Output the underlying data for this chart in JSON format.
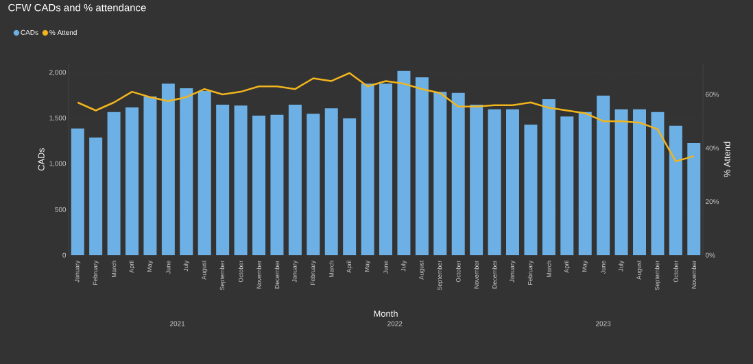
{
  "chart_data": {
    "type": "bar",
    "title": "CFW CADs and % attendance",
    "xlabel": "Month",
    "ylabel": "CADs",
    "y2label": "% Attend",
    "categories": [
      "January",
      "February",
      "March",
      "April",
      "May",
      "June",
      "July",
      "August",
      "September",
      "October",
      "November",
      "December",
      "January",
      "February",
      "March",
      "April",
      "May",
      "June",
      "July",
      "August",
      "September",
      "October",
      "November",
      "December",
      "January",
      "February",
      "March",
      "April",
      "May",
      "June",
      "July",
      "August",
      "September",
      "October",
      "November"
    ],
    "annotations": [
      "2021",
      "2022",
      "2023"
    ],
    "series": [
      {
        "name": "CADs",
        "type": "bar",
        "color": "#6cb0e5",
        "values": [
          1390,
          1290,
          1570,
          1620,
          1740,
          1880,
          1830,
          1800,
          1650,
          1640,
          1530,
          1540,
          1650,
          1550,
          1610,
          1500,
          1880,
          1880,
          2020,
          1950,
          1790,
          1780,
          1650,
          1600,
          1600,
          1430,
          1710,
          1520,
          1570,
          1750,
          1600,
          1600,
          1570,
          1420,
          1230
        ]
      },
      {
        "name": "% Attend",
        "type": "line",
        "axis": "y2",
        "color": "#f2b51c",
        "values": [
          57,
          54,
          57,
          61,
          59,
          57.5,
          59,
          62,
          60,
          61,
          63,
          63,
          62,
          66,
          65,
          68,
          63,
          65,
          64,
          62,
          60.5,
          55.5,
          55.5,
          56,
          56,
          57,
          55,
          54,
          53,
          50,
          50,
          49.5,
          47,
          35,
          37
        ]
      }
    ],
    "ylim": [
      0,
      2100
    ],
    "yticks": [
      0,
      500,
      {
        "value": 1000,
        "label": "1,000"
      },
      {
        "value": 1500,
        "label": "1,500"
      },
      {
        "value": 2000,
        "label": "2,000"
      }
    ],
    "y2lim": [
      0,
      71.5
    ],
    "y2ticks": [
      {
        "value": 0,
        "label": "0%"
      },
      {
        "value": 20,
        "label": "20%"
      },
      {
        "value": 40,
        "label": "40%"
      },
      {
        "value": 60,
        "label": "60%"
      }
    ],
    "grid": "y",
    "legend": "top left",
    "line_style": "solid",
    "marker": "none"
  }
}
